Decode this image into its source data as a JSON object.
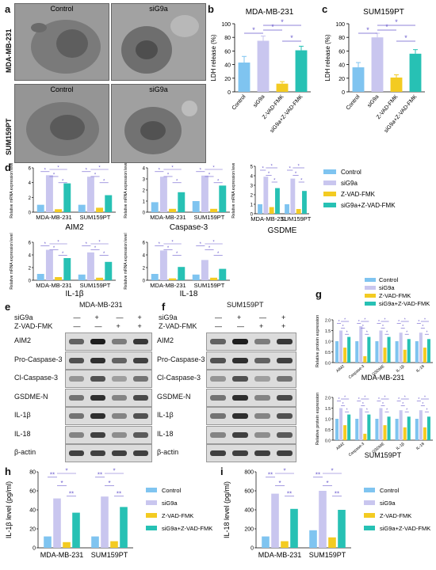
{
  "colors": {
    "Control": "#7fc4f0",
    "siG9a": "#c9c6ef",
    "Z-VAD-FMK": "#f3cb22",
    "siG9a+Z-VAD-FMK": "#27c1b4",
    "sig": "#6a5acd"
  },
  "legend_labels": [
    "Control",
    "siG9a",
    "Z-VAD-FMK",
    "siG9a+Z-VAD-FMK"
  ],
  "panel_a": {
    "letter": "a",
    "rows": [
      "MDA-MB-231",
      "SUM159PT"
    ],
    "cols": [
      "Control",
      "siG9a"
    ]
  },
  "panel_b": {
    "letter": "b",
    "chart_data": {
      "type": "bar",
      "title": "MDA-MB-231",
      "ylabel": "LDH release (%)",
      "ylim": [
        0,
        100
      ],
      "yticks": [
        0,
        20,
        40,
        60,
        80,
        100
      ],
      "categories": [
        "Control",
        "siG9a",
        "Z-VAD-FMK",
        "siG9a+Z-VAD-FMK"
      ],
      "values": [
        43,
        75,
        12,
        61
      ],
      "errors": [
        9,
        7,
        3,
        6
      ],
      "sig": [
        "*",
        "*",
        "*",
        "*"
      ]
    }
  },
  "panel_c": {
    "letter": "c",
    "chart_data": {
      "type": "bar",
      "title": "SUM159PT",
      "ylabel": "LDH release (%)",
      "ylim": [
        0,
        100
      ],
      "yticks": [
        0,
        20,
        40,
        60,
        80,
        100
      ],
      "categories": [
        "Control",
        "siG9a",
        "Z-VAD-FMK",
        "siG9a+Z-VAD-FMK"
      ],
      "values": [
        36,
        80,
        21,
        56
      ],
      "errors": [
        7,
        6,
        4,
        6
      ],
      "sig": [
        "*",
        "*",
        "*",
        "*"
      ]
    }
  },
  "panel_d": {
    "letter": "d",
    "ylabel": "Relative mRNA expression level",
    "groups": [
      "MDA-MB-231",
      "SUM159PT"
    ],
    "chart_data": [
      {
        "type": "bar",
        "title": "AIM2",
        "ylim": [
          0,
          6
        ],
        "yticks": [
          0,
          2,
          4,
          6
        ],
        "series": [
          {
            "name": "Control",
            "values": [
              1.0,
              1.0
            ]
          },
          {
            "name": "siG9a",
            "values": [
              5.0,
              4.8
            ]
          },
          {
            "name": "Z-VAD-FMK",
            "values": [
              0.4,
              0.6
            ]
          },
          {
            "name": "siG9a+Z-VAD-FMK",
            "values": [
              3.9,
              2.3
            ]
          }
        ]
      },
      {
        "type": "bar",
        "title": "Caspase-3",
        "ylim": [
          0,
          4
        ],
        "yticks": [
          0,
          1,
          2,
          3,
          4
        ],
        "series": [
          {
            "name": "Control",
            "values": [
              0.9,
              1.0
            ]
          },
          {
            "name": "siG9a",
            "values": [
              3.2,
              3.3
            ]
          },
          {
            "name": "Z-VAD-FMK",
            "values": [
              0.3,
              0.3
            ]
          },
          {
            "name": "siG9a+Z-VAD-FMK",
            "values": [
              1.8,
              2.4
            ]
          }
        ]
      },
      {
        "type": "bar",
        "title": "GSDME",
        "ylim": [
          0,
          5
        ],
        "yticks": [
          0,
          1,
          2,
          3,
          4,
          5
        ],
        "series": [
          {
            "name": "Control",
            "values": [
              1.0,
              1.0
            ]
          },
          {
            "name": "siG9a",
            "values": [
              3.9,
              3.7
            ]
          },
          {
            "name": "Z-VAD-FMK",
            "values": [
              0.7,
              0.5
            ]
          },
          {
            "name": "siG9a+Z-VAD-FMK",
            "values": [
              2.7,
              2.4
            ]
          }
        ]
      },
      {
        "type": "bar",
        "title": "IL-1β",
        "ylim": [
          0,
          6
        ],
        "yticks": [
          0,
          2,
          4,
          6
        ],
        "series": [
          {
            "name": "Control",
            "values": [
              1.0,
              0.9
            ]
          },
          {
            "name": "siG9a",
            "values": [
              4.8,
              4.4
            ]
          },
          {
            "name": "Z-VAD-FMK",
            "values": [
              0.5,
              0.4
            ]
          },
          {
            "name": "siG9a+Z-VAD-FMK",
            "values": [
              3.5,
              2.9
            ]
          }
        ]
      },
      {
        "type": "bar",
        "title": "IL-18",
        "ylim": [
          0,
          6
        ],
        "yticks": [
          0,
          2,
          4,
          6
        ],
        "series": [
          {
            "name": "Control",
            "values": [
              1.0,
              0.9
            ]
          },
          {
            "name": "siG9a",
            "values": [
              4.7,
              3.2
            ]
          },
          {
            "name": "Z-VAD-FMK",
            "values": [
              0.3,
              0.4
            ]
          },
          {
            "name": "siG9a+Z-VAD-FMK",
            "values": [
              2.1,
              1.8
            ]
          }
        ]
      }
    ]
  },
  "panel_e": {
    "letter": "e",
    "title": "MDA-MB-231",
    "treat_rows": [
      {
        "label": "siG9a",
        "marks": [
          "—",
          "+",
          "—",
          "+"
        ]
      },
      {
        "label": "Z-VAD-FMK",
        "marks": [
          "—",
          "—",
          "+",
          "+"
        ]
      }
    ],
    "bands": [
      "AIM2",
      "Pro-Caspase-3",
      "Cl-Caspase-3",
      "GSDME-N",
      "IL-1β",
      "IL-18",
      "β-actin"
    ]
  },
  "panel_f": {
    "letter": "f",
    "title": "SUM159PT",
    "treat_rows": [
      {
        "label": "siG9a",
        "marks": [
          "—",
          "+",
          "—",
          "+"
        ]
      },
      {
        "label": "Z-VAD-FMK",
        "marks": [
          "—",
          "—",
          "+",
          "+"
        ]
      }
    ],
    "bands": [
      "AIM2",
      "Pro-Caspase-3",
      "Cl-Caspase-3",
      "GSDME-N",
      "IL-1β",
      "IL-18",
      "β-actin"
    ]
  },
  "panel_g": {
    "letter": "g",
    "ylabel": "Relative protein expression",
    "categories": [
      "AIM2",
      "Caspase-3",
      "GSDME",
      "IL-1β",
      "IL-18"
    ],
    "chart_data": [
      {
        "type": "bar",
        "title": "MDA-MB-231",
        "ylim": [
          0,
          2
        ],
        "yticks": [
          0.0,
          0.5,
          1.0,
          1.5,
          2.0
        ],
        "series": [
          {
            "name": "Control",
            "values": [
              1.0,
              1.0,
              1.0,
              1.0,
              1.0
            ]
          },
          {
            "name": "siG9a",
            "values": [
              1.5,
              1.7,
              1.5,
              1.4,
              1.4
            ]
          },
          {
            "name": "Z-VAD-FMK",
            "values": [
              0.7,
              0.3,
              0.7,
              0.6,
              0.7
            ]
          },
          {
            "name": "siG9a+Z-VAD-FMK",
            "values": [
              1.2,
              1.2,
              1.2,
              1.1,
              1.1
            ]
          }
        ]
      },
      {
        "type": "bar",
        "title": "SUM159PT",
        "ylim": [
          0,
          2
        ],
        "yticks": [
          0.0,
          0.5,
          1.0,
          1.5,
          2.0
        ],
        "series": [
          {
            "name": "Control",
            "values": [
              1.0,
              1.0,
              1.0,
              1.0,
              1.0
            ]
          },
          {
            "name": "siG9a",
            "values": [
              1.5,
              1.5,
              1.5,
              1.4,
              1.4
            ]
          },
          {
            "name": "Z-VAD-FMK",
            "values": [
              0.7,
              0.3,
              0.7,
              0.6,
              0.6
            ]
          },
          {
            "name": "siG9a+Z-VAD-FMK",
            "values": [
              1.2,
              1.2,
              1.1,
              1.1,
              1.1
            ]
          }
        ]
      }
    ]
  },
  "panel_h": {
    "letter": "h",
    "groups": [
      "MDA-MB-231",
      "SUM159PT"
    ],
    "chart_data": {
      "type": "bar",
      "ylabel": "IL-1β level (pg/ml)",
      "ylim": [
        0,
        80
      ],
      "yticks": [
        0,
        20,
        40,
        60,
        80
      ],
      "series": [
        {
          "name": "Control",
          "values": [
            12,
            12
          ]
        },
        {
          "name": "siG9a",
          "values": [
            52,
            54
          ]
        },
        {
          "name": "Z-VAD-FMK",
          "values": [
            6,
            7
          ]
        },
        {
          "name": "siG9a+Z-VAD-FMK",
          "values": [
            37,
            43
          ]
        }
      ],
      "sig_labels": [
        "**",
        "*",
        "*",
        "**"
      ]
    }
  },
  "panel_i": {
    "letter": "i",
    "groups": [
      "MDA-MB-231",
      "SUM159PT"
    ],
    "chart_data": {
      "type": "bar",
      "ylabel": "IL-18 level (pg/ml)",
      "ylim": [
        0,
        800
      ],
      "yticks": [
        0,
        200,
        400,
        600,
        800
      ],
      "series": [
        {
          "name": "Control",
          "values": [
            120,
            185
          ]
        },
        {
          "name": "siG9a",
          "values": [
            570,
            600
          ]
        },
        {
          "name": "Z-VAD-FMK",
          "values": [
            70,
            110
          ]
        },
        {
          "name": "siG9a+Z-VAD-FMK",
          "values": [
            410,
            400
          ]
        }
      ],
      "sig_labels": [
        "**",
        "*",
        "*",
        "**"
      ]
    }
  }
}
